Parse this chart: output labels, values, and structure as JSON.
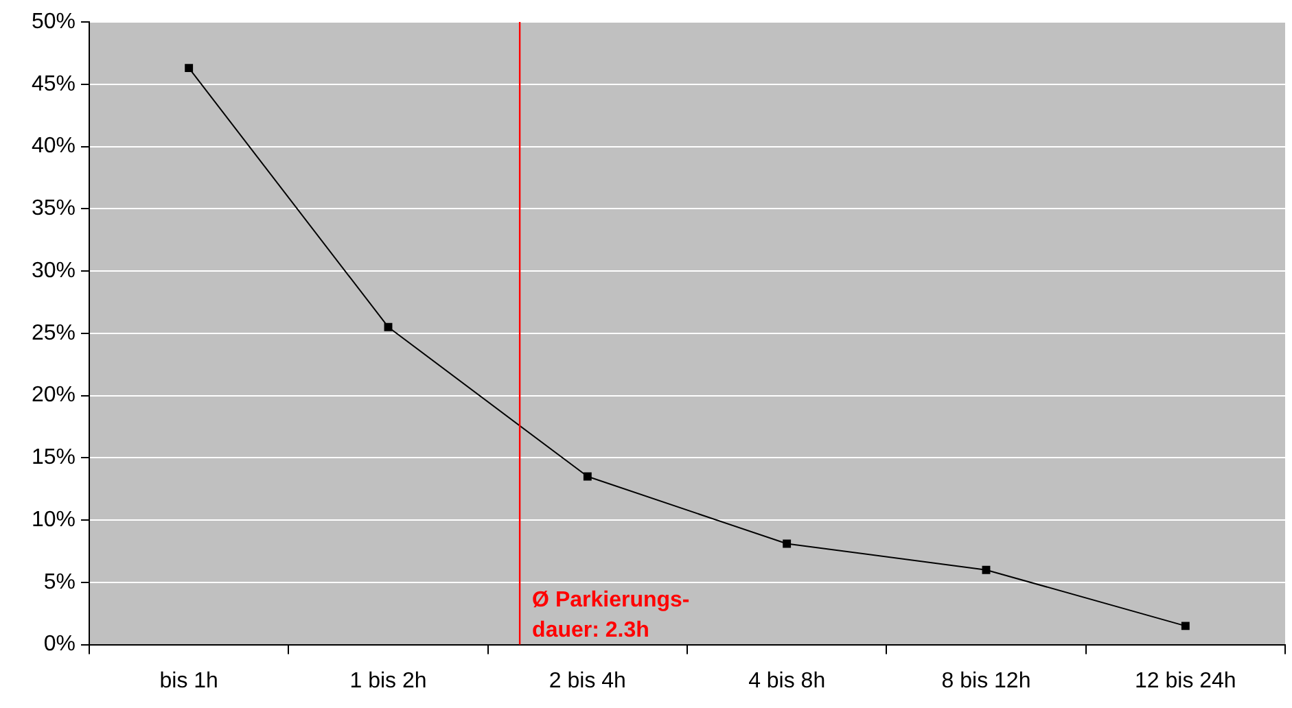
{
  "chart_data": {
    "type": "line",
    "categories": [
      "bis 1h",
      "1 bis 2h",
      "2 bis 4h",
      "4 bis 8h",
      "8 bis 12h",
      "12 bis 24h"
    ],
    "series": [
      {
        "color": "#000000",
        "values": [
          46.3,
          25.5,
          13.5,
          8.1,
          6.0,
          1.5
        ]
      }
    ],
    "ylim": [
      0,
      50
    ],
    "yticks": [
      {
        "value": 0,
        "label": "0%"
      },
      {
        "value": 5,
        "label": "5%"
      },
      {
        "value": 10,
        "label": "10%"
      },
      {
        "value": 15,
        "label": "15%"
      },
      {
        "value": 20,
        "label": "20%"
      },
      {
        "value": 25,
        "label": "25%"
      },
      {
        "value": 30,
        "label": "30%"
      },
      {
        "value": 35,
        "label": "35%"
      },
      {
        "value": 40,
        "label": "40%"
      },
      {
        "value": 45,
        "label": "45%"
      },
      {
        "value": 50,
        "label": "50%"
      }
    ],
    "grid": "y",
    "legend": false,
    "marker": "square",
    "line_style": "solid",
    "ref_lines": [
      {
        "axis": "x",
        "value": "2 bis 4h",
        "label": "Ø Parkierungs-\ndauer: 2.3h",
        "color": "#ff0000"
      }
    ]
  }
}
